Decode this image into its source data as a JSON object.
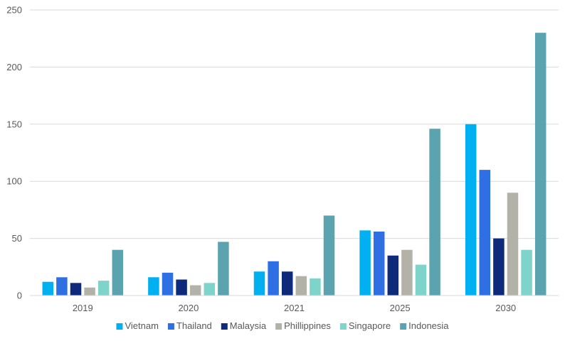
{
  "chart_data": {
    "type": "bar",
    "categories": [
      "2019",
      "2020",
      "2021",
      "2025",
      "2030"
    ],
    "series": [
      {
        "name": "Vietnam",
        "color": "#00B0F0",
        "values": [
          12,
          16,
          21,
          57,
          150
        ]
      },
      {
        "name": "Thailand",
        "color": "#2F6FE4",
        "values": [
          16,
          20,
          30,
          56,
          110
        ]
      },
      {
        "name": "Malaysia",
        "color": "#0E2A7A",
        "values": [
          11,
          14,
          21,
          35,
          50
        ]
      },
      {
        "name": "Phillippines",
        "color": "#B2B2A8",
        "values": [
          7,
          9,
          17,
          40,
          90
        ]
      },
      {
        "name": "Singapore",
        "color": "#7ED3CB",
        "values": [
          13,
          11,
          15,
          27,
          40
        ]
      },
      {
        "name": "Indonesia",
        "color": "#5BA3AE",
        "values": [
          40,
          47,
          70,
          146,
          230
        ]
      }
    ],
    "yticks": [
      0,
      50,
      100,
      150,
      200,
      250
    ],
    "ylim": [
      0,
      250
    ],
    "grid": true,
    "legend_position": "bottom",
    "title": "",
    "xlabel": "",
    "ylabel": ""
  }
}
